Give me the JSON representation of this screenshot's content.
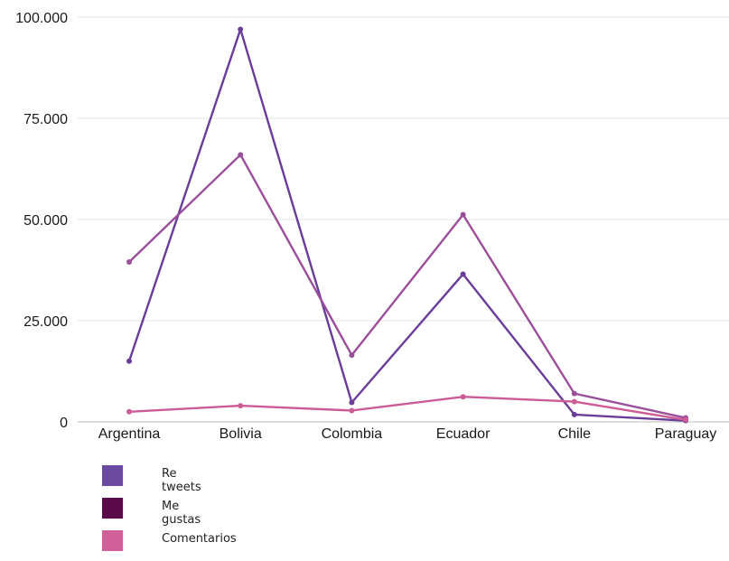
{
  "chart_data": {
    "type": "line",
    "categories": [
      "Argentina",
      "Bolivia",
      "Colombia",
      "Ecuador",
      "Chile",
      "Paraguay"
    ],
    "ylim": [
      0,
      100000
    ],
    "yticks": [
      0,
      25000,
      50000,
      75000,
      100000
    ],
    "ytick_labels": [
      "0",
      "25.000",
      "50.000",
      "75.000",
      "100.000"
    ],
    "grid": true,
    "legend_position": "bottom-left",
    "series": [
      {
        "name": "Re tweets",
        "color": "#6a3d9a",
        "values": [
          15000,
          97000,
          4800,
          36500,
          1800,
          300
        ]
      },
      {
        "name": "Me gustas",
        "color": "#9b4f9a",
        "values": [
          39500,
          66000,
          16500,
          51200,
          7000,
          1000
        ]
      },
      {
        "name": "Comentarios",
        "color": "#cc5c96",
        "values": [
          2500,
          4000,
          2800,
          6200,
          5000,
          500
        ]
      }
    ],
    "legend": [
      {
        "label": "Re tweets",
        "color": "#6a4aa0"
      },
      {
        "label": "Me gustas",
        "color": "#5a0a48"
      },
      {
        "label": "Comentarios",
        "color": "#d1609a"
      }
    ]
  }
}
